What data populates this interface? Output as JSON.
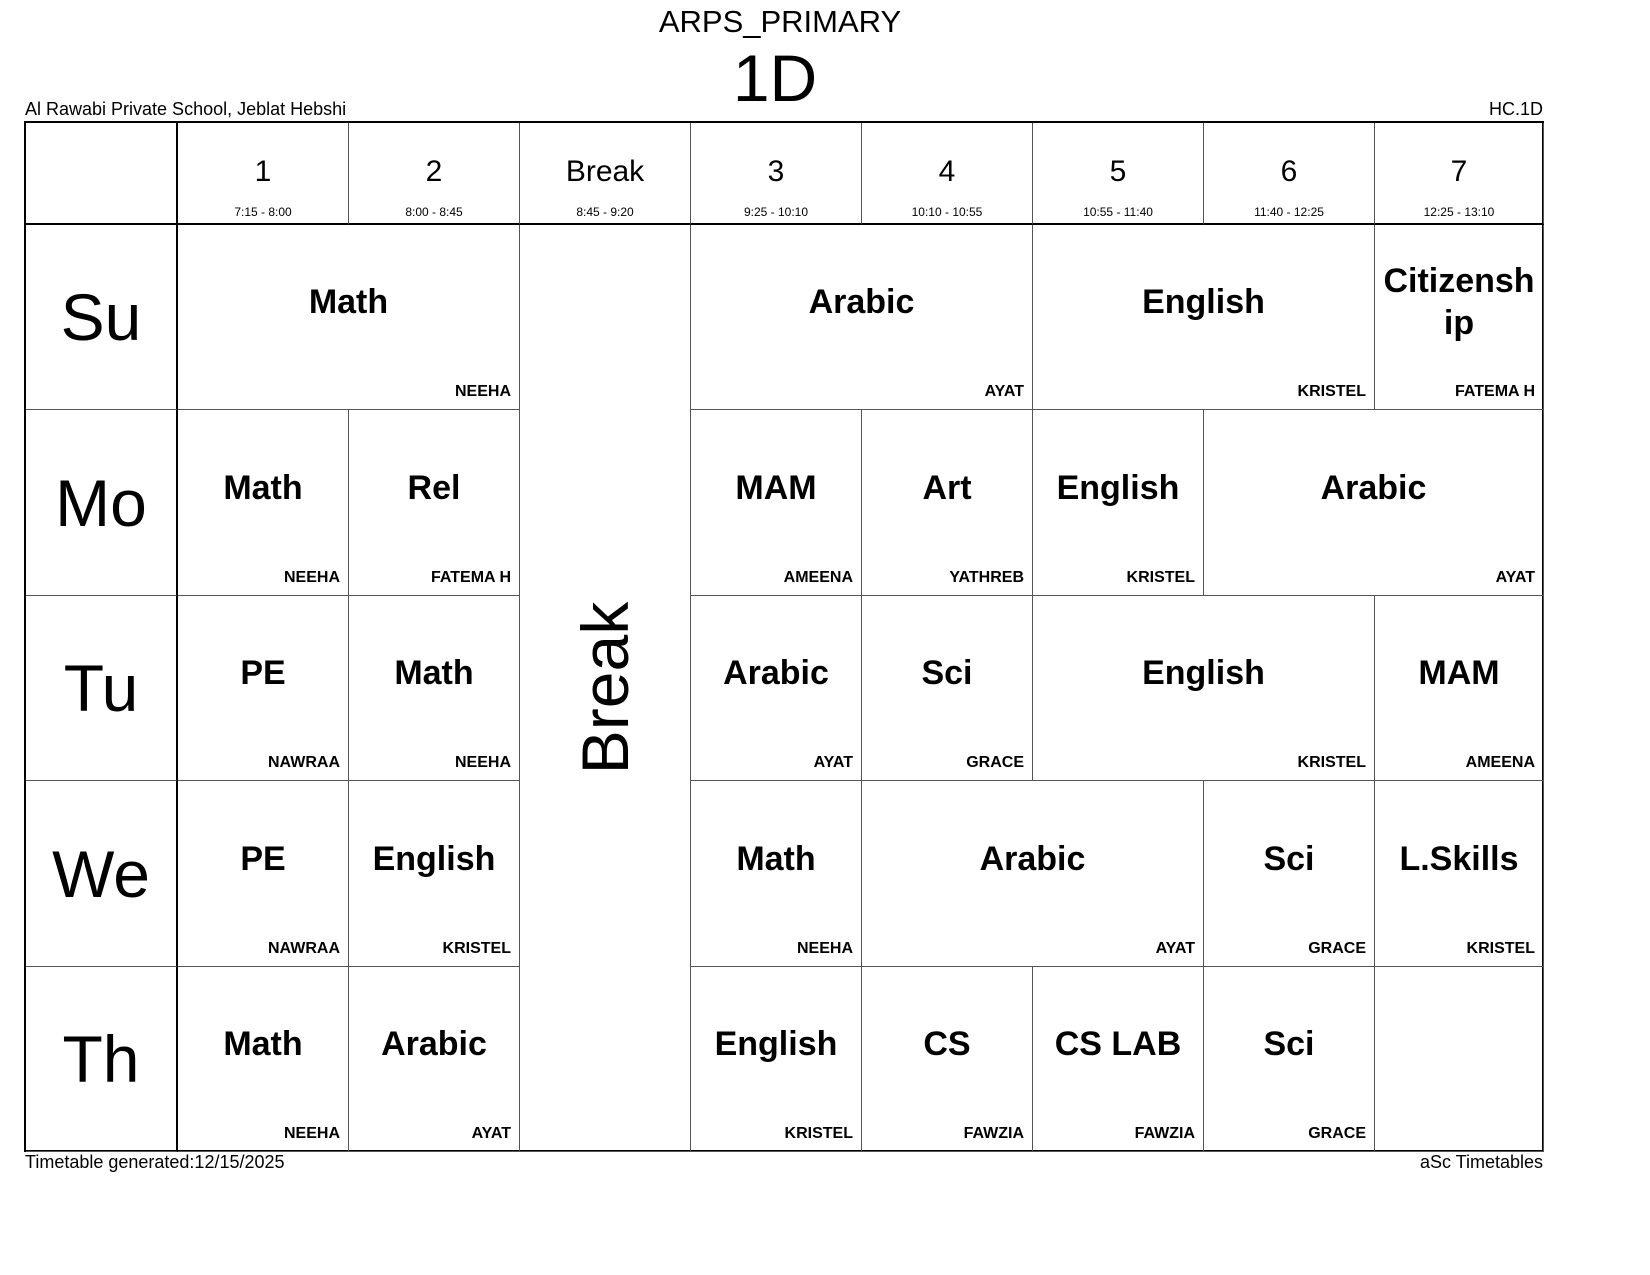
{
  "header": {
    "title": "ARPS_PRIMARY",
    "class_name": "1D",
    "school": "Al Rawabi Private School, Jeblat Hebshi",
    "code": "HC.1D"
  },
  "footer": {
    "generated": "Timetable generated:12/15/2025",
    "brand": "aSc Timetables"
  },
  "periods": [
    {
      "label": "1",
      "time": "7:15 - 8:00"
    },
    {
      "label": "2",
      "time": "8:00 - 8:45"
    },
    {
      "label": "Break",
      "time": "8:45 - 9:20"
    },
    {
      "label": "3",
      "time": "9:25 - 10:10"
    },
    {
      "label": "4",
      "time": "10:10 - 10:55"
    },
    {
      "label": "5",
      "time": "10:55 - 11:40"
    },
    {
      "label": "6",
      "time": "11:40 - 12:25"
    },
    {
      "label": "7",
      "time": "12:25 - 13:10"
    }
  ],
  "break_label": "Break",
  "days": [
    {
      "label": "Su",
      "lessons": [
        {
          "subject": "Math",
          "teacher": "NEEHA",
          "col": 0,
          "span": 2
        },
        {
          "subject": "Arabic",
          "teacher": "AYAT",
          "col": 3,
          "span": 2
        },
        {
          "subject": "English",
          "teacher": "KRISTEL",
          "col": 5,
          "span": 2
        },
        {
          "subject": "Citizenship",
          "teacher": "FATEMA H",
          "col": 7,
          "span": 1
        }
      ]
    },
    {
      "label": "Mo",
      "lessons": [
        {
          "subject": "Math",
          "teacher": "NEEHA",
          "col": 0,
          "span": 1
        },
        {
          "subject": "Rel",
          "teacher": "FATEMA H",
          "col": 1,
          "span": 1
        },
        {
          "subject": "MAM",
          "teacher": "AMEENA",
          "col": 3,
          "span": 1
        },
        {
          "subject": "Art",
          "teacher": "YATHREB",
          "col": 4,
          "span": 1
        },
        {
          "subject": "English",
          "teacher": "KRISTEL",
          "col": 5,
          "span": 1
        },
        {
          "subject": "Arabic",
          "teacher": "AYAT",
          "col": 6,
          "span": 2
        }
      ]
    },
    {
      "label": "Tu",
      "lessons": [
        {
          "subject": "PE",
          "teacher": "NAWRAA",
          "col": 0,
          "span": 1
        },
        {
          "subject": "Math",
          "teacher": "NEEHA",
          "col": 1,
          "span": 1
        },
        {
          "subject": "Arabic",
          "teacher": "AYAT",
          "col": 3,
          "span": 1
        },
        {
          "subject": "Sci",
          "teacher": "GRACE",
          "col": 4,
          "span": 1
        },
        {
          "subject": "English",
          "teacher": "KRISTEL",
          "col": 5,
          "span": 2
        },
        {
          "subject": "MAM",
          "teacher": "AMEENA",
          "col": 7,
          "span": 1
        }
      ]
    },
    {
      "label": "We",
      "lessons": [
        {
          "subject": "PE",
          "teacher": "NAWRAA",
          "col": 0,
          "span": 1
        },
        {
          "subject": "English",
          "teacher": "KRISTEL",
          "col": 1,
          "span": 1
        },
        {
          "subject": "Math",
          "teacher": "NEEHA",
          "col": 3,
          "span": 1
        },
        {
          "subject": "Arabic",
          "teacher": "AYAT",
          "col": 4,
          "span": 2
        },
        {
          "subject": "Sci",
          "teacher": "GRACE",
          "col": 6,
          "span": 1
        },
        {
          "subject": "L.Skills",
          "teacher": "KRISTEL",
          "col": 7,
          "span": 1
        }
      ]
    },
    {
      "label": "Th",
      "lessons": [
        {
          "subject": "Math",
          "teacher": "NEEHA",
          "col": 0,
          "span": 1
        },
        {
          "subject": "Arabic",
          "teacher": "AYAT",
          "col": 1,
          "span": 1
        },
        {
          "subject": "English",
          "teacher": "KRISTEL",
          "col": 3,
          "span": 1
        },
        {
          "subject": "CS",
          "teacher": "FAWZIA",
          "col": 4,
          "span": 1
        },
        {
          "subject": "CS LAB",
          "teacher": "FAWZIA",
          "col": 5,
          "span": 1
        },
        {
          "subject": "Sci",
          "teacher": "GRACE",
          "col": 6,
          "span": 1
        }
      ]
    }
  ]
}
